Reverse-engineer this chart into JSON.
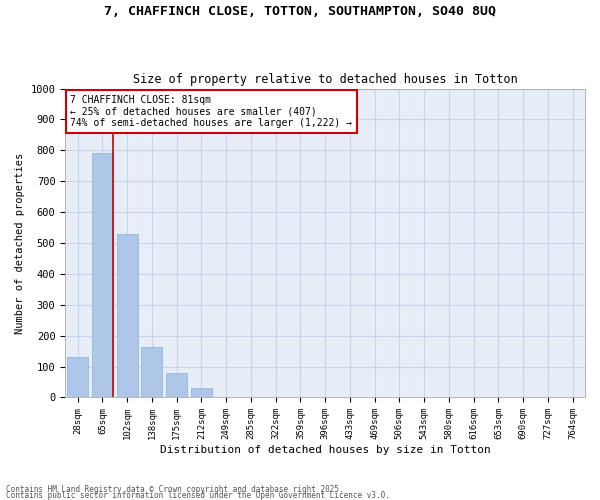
{
  "title_line1": "7, CHAFFINCH CLOSE, TOTTON, SOUTHAMPTON, SO40 8UQ",
  "title_line2": "Size of property relative to detached houses in Totton",
  "xlabel": "Distribution of detached houses by size in Totton",
  "ylabel": "Number of detached properties",
  "categories": [
    "28sqm",
    "65sqm",
    "102sqm",
    "138sqm",
    "175sqm",
    "212sqm",
    "249sqm",
    "285sqm",
    "322sqm",
    "359sqm",
    "396sqm",
    "433sqm",
    "469sqm",
    "506sqm",
    "543sqm",
    "580sqm",
    "616sqm",
    "653sqm",
    "690sqm",
    "727sqm",
    "764sqm"
  ],
  "values": [
    130,
    790,
    530,
    165,
    80,
    30,
    0,
    0,
    0,
    0,
    0,
    0,
    0,
    0,
    0,
    0,
    0,
    0,
    0,
    0,
    0
  ],
  "bar_color": "#aec6e8",
  "bar_edgecolor": "#8ab4d8",
  "grid_color": "#c8d4e8",
  "background_color": "#e8eef8",
  "red_line_color": "#cc0000",
  "annotation_text": "7 CHAFFINCH CLOSE: 81sqm\n← 25% of detached houses are smaller (407)\n74% of semi-detached houses are larger (1,222) →",
  "annotation_box_color": "#cc0000",
  "footnote1": "Contains HM Land Registry data © Crown copyright and database right 2025.",
  "footnote2": "Contains public sector information licensed under the Open Government Licence v3.0.",
  "ylim": [
    0,
    1000
  ],
  "yticks": [
    0,
    100,
    200,
    300,
    400,
    500,
    600,
    700,
    800,
    900,
    1000
  ]
}
